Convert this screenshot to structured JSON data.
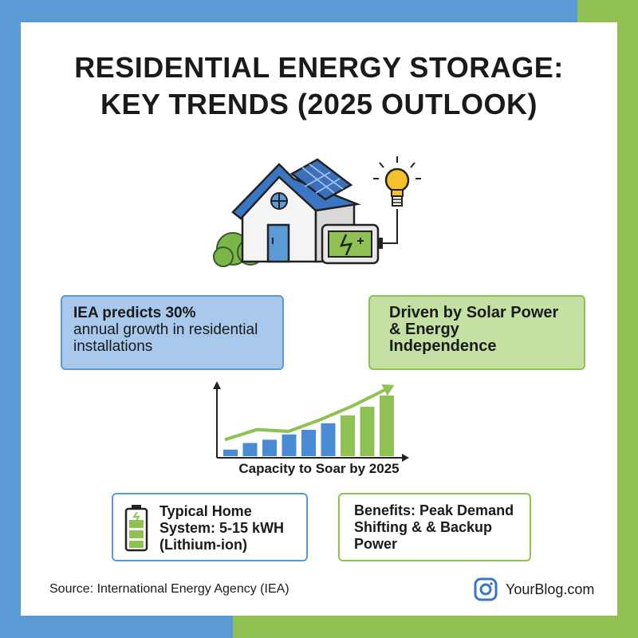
{
  "title": {
    "line1": "RESIDENTIAL ENERGY STORAGE:",
    "line2": "KEY TRENDS (2025 OUTLOOK)"
  },
  "icons": [
    "house-icon",
    "solar-panel-icon",
    "battery-icon",
    "light-bulb-icon",
    "bush-icon",
    "instagram-icon"
  ],
  "callouts": {
    "growth": {
      "line1": "IEA predicts 30%",
      "line2": "annual growth in residential installations"
    },
    "drivers": "Driven by Solar Power & Energy Independence",
    "system": "Typical Home System: 5-15 kWH (Lithium-ion)",
    "benefits": "Benefits: Peak Demand Shifting & & Backup Power"
  },
  "chart_data": {
    "type": "bar",
    "caption": "Capacity to Soar by 2025",
    "values": [
      1,
      2,
      2.5,
      3.3,
      4,
      5,
      6.2,
      7.5,
      9.2
    ],
    "colors": [
      "#4a8bd6",
      "#4a8bd6",
      "#4a8bd6",
      "#4a8bd6",
      "#4a8bd6",
      "#4a8bd6",
      "#8fc153",
      "#8fc153",
      "#8fc153"
    ],
    "trend": [
      2.8,
      4.5,
      4.2,
      6.2,
      8.5,
      11.2
    ]
  },
  "footer": {
    "source": "Source: International Energy Agency (IEA)",
    "brand": "YourBlog.com"
  },
  "colors": {
    "blue": "#5b9bd5",
    "green": "#8fc153",
    "blue_fill": "#a8c8ec",
    "green_fill": "#c4e0a2"
  }
}
